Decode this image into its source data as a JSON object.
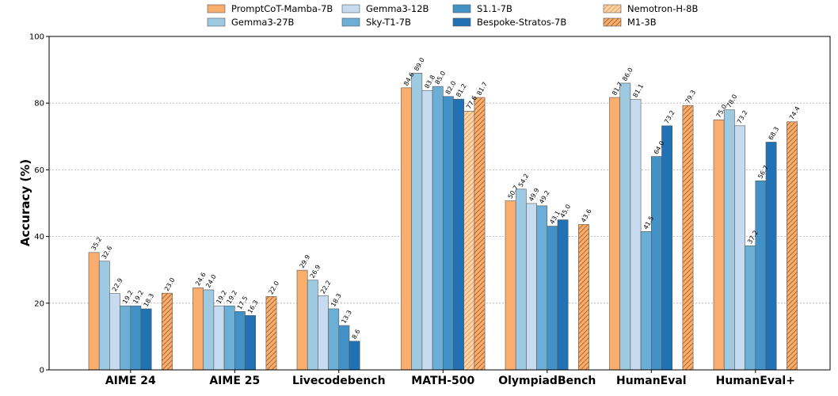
{
  "chart_data": {
    "type": "bar",
    "ylabel": "Accuracy (%)",
    "ylim": [
      0,
      100
    ],
    "yticks": [
      0,
      20,
      40,
      60,
      80,
      100
    ],
    "grid": true,
    "legend": "top",
    "categories": [
      "AIME 24",
      "AIME 25",
      "Livecodebench",
      "MATH-500",
      "OlympiadBench",
      "HumanEval",
      "HumanEval+"
    ],
    "series": [
      {
        "name": "PromptCoT-Mamba-7B",
        "color": "#f9ae6e",
        "hatch": false,
        "values": [
          35.2,
          24.6,
          29.9,
          84.6,
          50.7,
          81.7,
          75.0
        ]
      },
      {
        "name": "Gemma3-27B",
        "color": "#9ecae1",
        "hatch": false,
        "values": [
          32.6,
          24.0,
          26.9,
          89.0,
          54.2,
          86.0,
          78.0
        ]
      },
      {
        "name": "Gemma3-12B",
        "color": "#c6dbef",
        "hatch": false,
        "values": [
          22.9,
          19.2,
          22.2,
          83.8,
          49.9,
          81.1,
          73.2
        ]
      },
      {
        "name": "Sky-T1-7B",
        "color": "#6baed6",
        "hatch": false,
        "values": [
          19.2,
          19.2,
          18.3,
          85.0,
          49.2,
          41.5,
          37.2
        ]
      },
      {
        "name": "S1.1-7B",
        "color": "#4292c6",
        "hatch": false,
        "values": [
          19.2,
          17.5,
          13.3,
          82.0,
          43.1,
          64.0,
          56.7
        ]
      },
      {
        "name": "Bespoke-Stratos-7B",
        "color": "#2171b5",
        "hatch": false,
        "values": [
          18.3,
          16.3,
          8.6,
          81.2,
          45.0,
          73.2,
          68.3
        ]
      },
      {
        "name": "Nemotron-H-8B",
        "color": "#fdd4a8",
        "hatch": true,
        "values": [
          null,
          null,
          null,
          77.6,
          null,
          null,
          null
        ]
      },
      {
        "name": "M1-3B",
        "color": "#f9ae6e",
        "hatch": true,
        "values": [
          23.0,
          22.0,
          null,
          81.7,
          43.6,
          79.3,
          74.4
        ]
      }
    ]
  }
}
